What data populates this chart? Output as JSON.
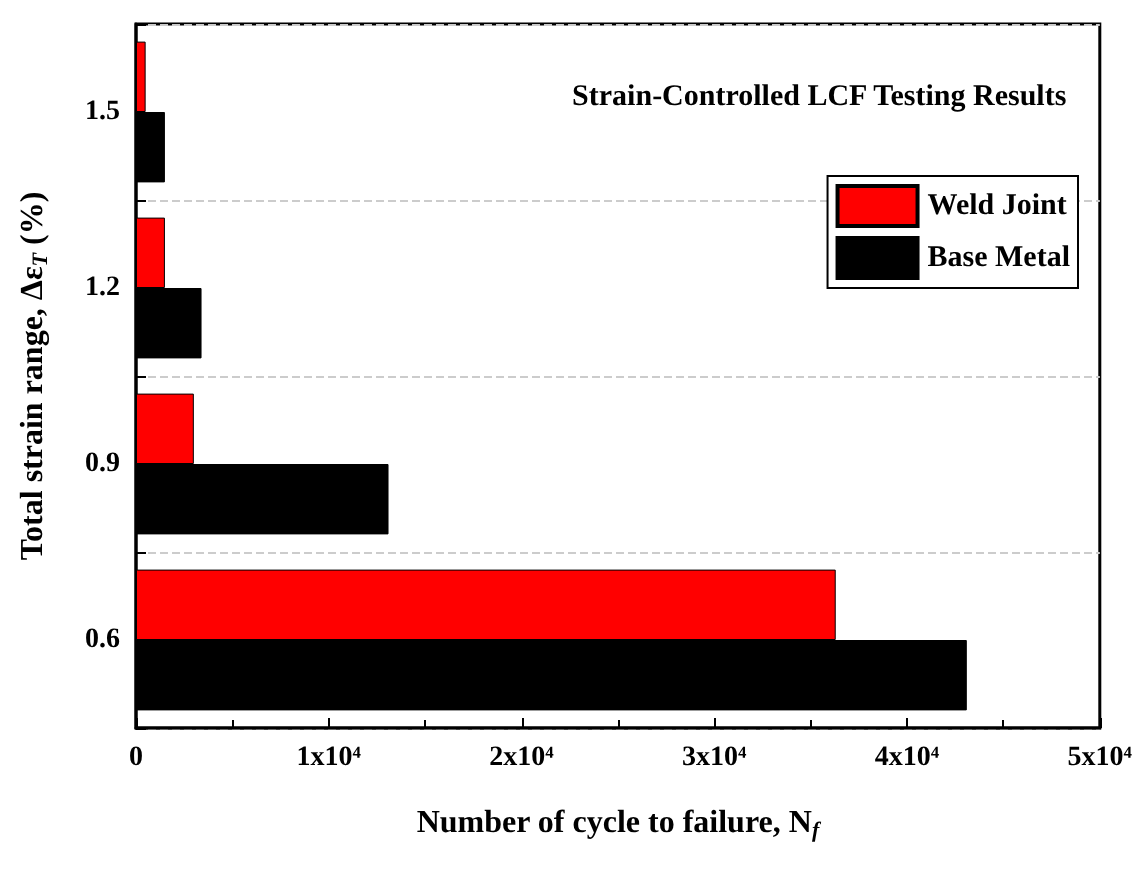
{
  "chart_data": {
    "type": "bar",
    "orientation": "horizontal",
    "title": "Strain-Controlled LCF Testing Results",
    "xlabel": "Number of cycle to failure, N$_{f}$",
    "ylabel": "Total strain range, Δε$_{T}$ (%)",
    "categories": [
      "1.5",
      "1.2",
      "0.9",
      "0.6"
    ],
    "series": [
      {
        "name": "Weld Joint",
        "color": "#ff0000",
        "values": [
          500,
          1500,
          3000,
          36300
        ]
      },
      {
        "name": "Base Metal",
        "color": "#000000",
        "values": [
          1500,
          3400,
          13100,
          43100
        ]
      }
    ],
    "xlim": [
      0,
      50000
    ],
    "xticks": [
      0,
      {
        "value": 10000,
        "label": "1x10⁴"
      },
      {
        "value": 20000,
        "label": "2x10⁴"
      },
      {
        "value": 30000,
        "label": "3x10⁴"
      },
      {
        "value": 40000,
        "label": "4x10⁴"
      },
      {
        "value": 50000,
        "label": "5x10⁴"
      }
    ],
    "grid": "y",
    "legend": "top right"
  }
}
